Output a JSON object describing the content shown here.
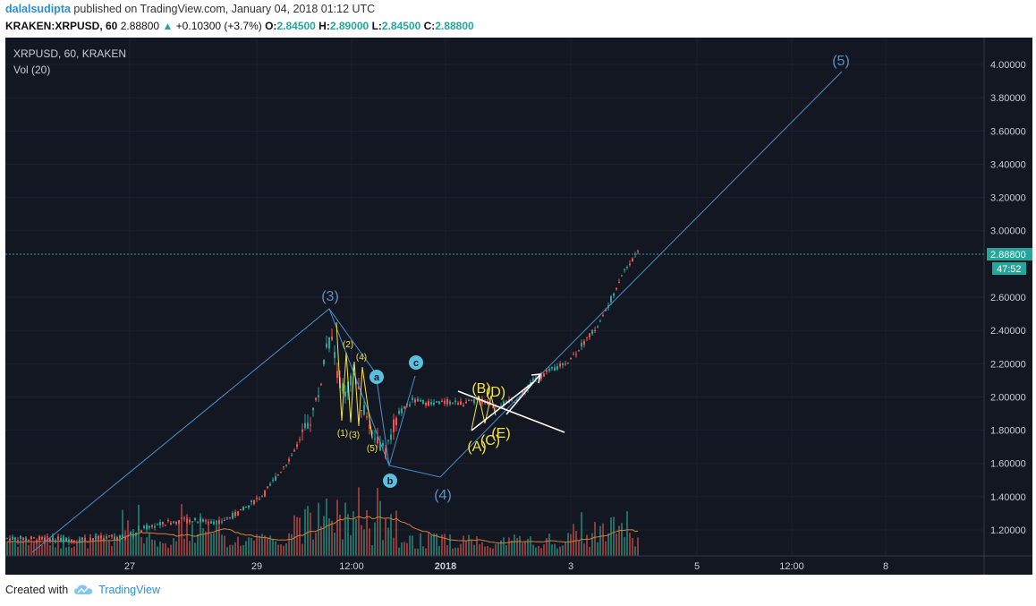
{
  "header": {
    "author": "dalalsudipta",
    "published_text": "published on TradingView.com, January 04, 2018 01:12 UTC",
    "symbol_line": "KRAKEN:XRPUSD, 60",
    "last": "2.88800",
    "change": "+0.10300 (+3.7%)",
    "o_label": "O:",
    "o_value": "2.84500",
    "h_label": "H:",
    "h_value": "2.89000",
    "l_label": "L:",
    "l_value": "2.84500",
    "c_label": "C:",
    "c_value": "2.88800"
  },
  "chart": {
    "legend_symbol": "XRPUSD, 60, KRAKEN",
    "legend_volume": "Vol (20)",
    "price_axis": [
      "4.00000",
      "3.80000",
      "3.60000",
      "3.40000",
      "3.20000",
      "3.00000",
      "2.60000",
      "2.40000",
      "2.20000",
      "2.00000",
      "1.80000",
      "1.60000",
      "1.40000",
      "1.20000"
    ],
    "last_price_tag": "2.88800",
    "countdown_tag": "47:52",
    "time_axis": [
      "27",
      "29",
      "12:00",
      "2018",
      "3",
      "5",
      "12:00",
      "8"
    ],
    "wave_labels": {
      "w3": "(3)",
      "w4": "(4)",
      "w5": "(5)",
      "a": "a",
      "b": "b",
      "c": "c",
      "s1": "(1)",
      "s2": "(2)",
      "s3": "(3)",
      "s4": "(4)",
      "s5": "(5)",
      "tA": "(A)",
      "tB": "(B)",
      "tC": "(C)",
      "tD": "(D)",
      "tE": "(E)"
    },
    "colors": {
      "background": "#131722",
      "up": "#26a69a",
      "down": "#ef5350",
      "wave": "#4a90c8",
      "sub_wave": "#f5e342",
      "abc": "#5bc0de"
    }
  },
  "footer": {
    "created_with": "Created with",
    "brand": "TradingView"
  }
}
